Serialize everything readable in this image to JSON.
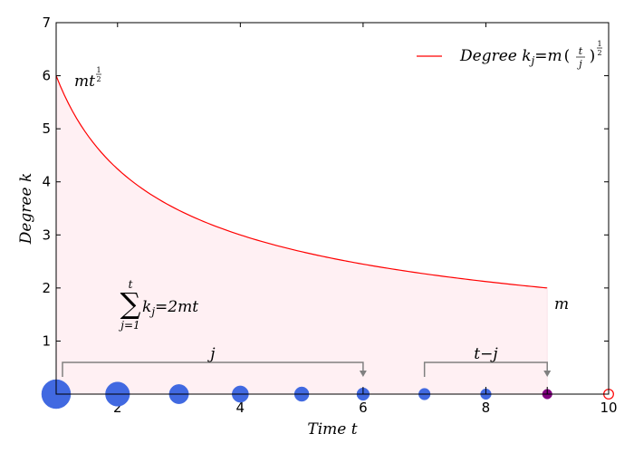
{
  "chart_data": {
    "type": "line",
    "xlabel": "Time t",
    "ylabel": "Degree k",
    "xlim": [
      1,
      10
    ],
    "ylim": [
      0,
      7
    ],
    "x_ticks": [
      2,
      4,
      6,
      8,
      10
    ],
    "y_ticks": [
      0,
      1,
      2,
      3,
      4,
      5,
      6,
      7
    ],
    "legend_position": "top-right",
    "series": [
      {
        "name": "Degree k_j = m(t/j)^(1/2)",
        "color": "#ff0000",
        "m": 2,
        "t": 9,
        "x": [
          1,
          1.25,
          1.5,
          2,
          2.5,
          3,
          3.5,
          4,
          4.5,
          5,
          5.5,
          6,
          6.5,
          7,
          7.5,
          8,
          8.5,
          9
        ],
        "y": [
          6.0,
          5.367,
          4.899,
          4.243,
          3.795,
          3.464,
          3.207,
          3.0,
          2.828,
          2.683,
          2.558,
          2.449,
          2.353,
          2.268,
          2.191,
          2.121,
          2.058,
          2.0
        ]
      }
    ],
    "fill_color": "#fff0f3",
    "nodes": [
      {
        "x": 1,
        "size": 6,
        "color": "#4169e1"
      },
      {
        "x": 2,
        "size": 5,
        "color": "#4169e1"
      },
      {
        "x": 3,
        "size": 4,
        "color": "#4169e1"
      },
      {
        "x": 4,
        "size": 3.4,
        "color": "#4169e1"
      },
      {
        "x": 5,
        "size": 3,
        "color": "#4169e1"
      },
      {
        "x": 6,
        "size": 2.6,
        "color": "#4169e1"
      },
      {
        "x": 7,
        "size": 2.4,
        "color": "#4169e1"
      },
      {
        "x": 8,
        "size": 2.2,
        "color": "#4169e1"
      },
      {
        "x": 9,
        "size": 2,
        "color": "#800080"
      },
      {
        "x": 10,
        "size": 2,
        "color": "#ff0000",
        "hollow": true
      }
    ],
    "brackets": [
      {
        "label": "j",
        "from": 1,
        "to": 6
      },
      {
        "label": "t−j",
        "from": 7,
        "to": 9
      }
    ],
    "annotations": {
      "start_label": "mt",
      "start_exp": "1",
      "start_exp_den": "2",
      "end_label": "m",
      "sum_symbol": "∑",
      "sum_top": "t",
      "sum_bottom": "j=1",
      "sum_body": "k",
      "sum_body_sub": "j",
      "sum_rhs": "=2mt"
    },
    "legend": {
      "word": "Degree ",
      "k": "k",
      "sub": "j",
      "eq": "=",
      "m": "m",
      "frac_num": "t",
      "frac_den": "j",
      "exp_num": "1",
      "exp_den": "2"
    },
    "axis_text": {
      "x_word": "Time ",
      "x_var": "t",
      "y_word": "Degree ",
      "y_var": "k"
    }
  }
}
